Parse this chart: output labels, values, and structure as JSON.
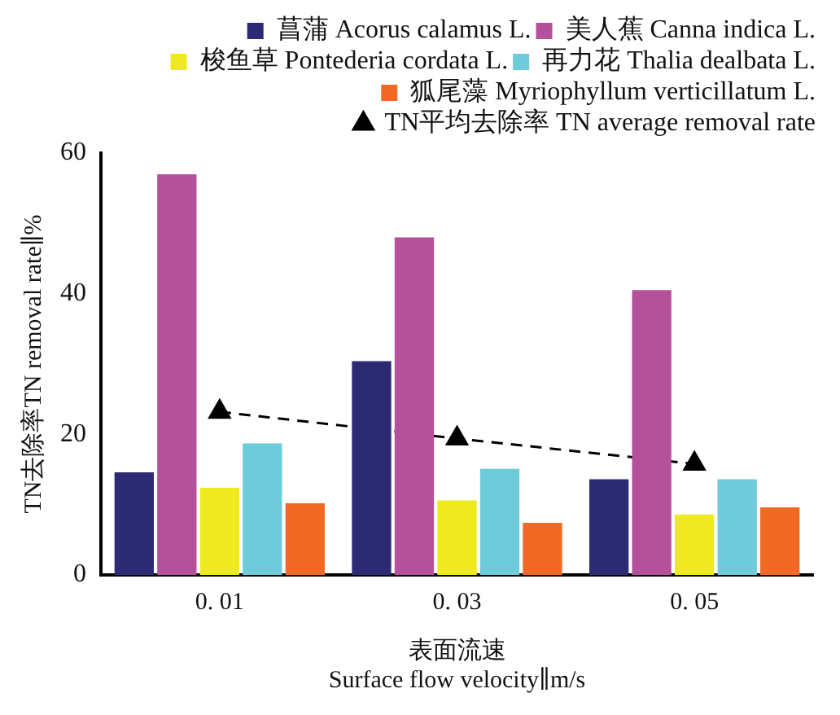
{
  "chart_data": {
    "type": "bar",
    "categories": [
      "0. 01",
      "0. 03",
      "0. 05"
    ],
    "xlabel": "表面流速\nSurface flow velocity∥m/s",
    "ylabel": "TN去除率TN removal rate∥%",
    "ylim": [
      0,
      60
    ],
    "yticks": [
      0,
      20,
      40,
      60
    ],
    "grid": false,
    "legend": "top right",
    "series": [
      {
        "name": "菖蒲 Acorus calamus L.",
        "color": "#2b2a72",
        "values": [
          14.6,
          30.4,
          13.6
        ]
      },
      {
        "name": "美人蕉 Canna indica L.",
        "color": "#b5519b",
        "values": [
          57,
          48,
          40.5
        ]
      },
      {
        "name": "梭鱼草 Pontederia cordata L.",
        "color": "#eeea1f",
        "values": [
          12.4,
          10.6,
          8.6
        ]
      },
      {
        "name": "再力花 Thalia dealbata L.",
        "color": "#6ecbd9",
        "values": [
          18.7,
          15.1,
          13.6
        ]
      },
      {
        "name": "狐尾藻 Myriophyllum verticillatum L.",
        "color": "#f06a25",
        "values": [
          10.2,
          7.4,
          9.6
        ]
      },
      {
        "name": "TN平均去除率 TN average removal rate",
        "type": "line",
        "color": "#000000",
        "marker": "triangle",
        "line_style": "dashed",
        "values": [
          23.2,
          19.4,
          15.8
        ]
      }
    ]
  }
}
